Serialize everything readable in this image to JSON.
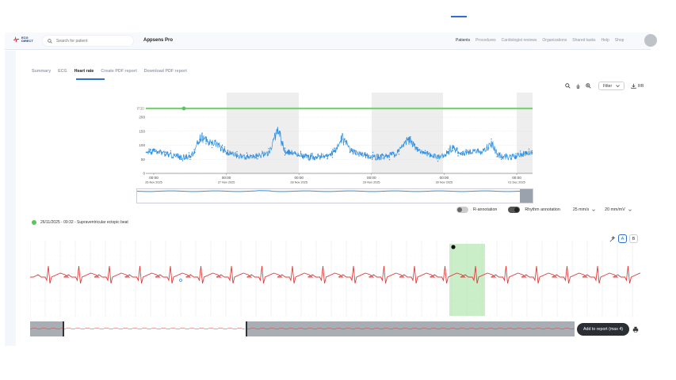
{
  "logo": {
    "text": "ECG DIRECT"
  },
  "search": {
    "placeholder": "Search for patient"
  },
  "app_title": "Appsens Pro",
  "topnav": [
    "Patients",
    "Procedures",
    "Cardiologist reviews",
    "Organizations",
    "Shared tasks",
    "Help",
    "Shop"
  ],
  "tabs": [
    "Summary",
    "ECG",
    "Heart rate",
    "Create PDF report",
    "Download PDF report"
  ],
  "active_tab": "Heart rate",
  "toolbar": {
    "filter_label": "Filter",
    "rr_label": "RR"
  },
  "hr_chart": {
    "series_top_label": "P30",
    "y_ticks": [
      "200",
      "150",
      "100",
      "50",
      "0"
    ],
    "x_times": [
      "00:00",
      "00:00",
      "00:00",
      "00:00",
      "00:00",
      "00:00"
    ],
    "x_dates": [
      "26 Nov 2025",
      "27 Nov 2025",
      "28 Nov 2025",
      "29 Nov 2025",
      "30 Nov 2025",
      "01 Dec 2025"
    ],
    "line_color": "#2f8fe0",
    "top_line_color": "#7dd07a"
  },
  "annotations": {
    "r_label": "R-annotation",
    "rhythm_label": "Rhythm annotation",
    "speed": "25 mm/s",
    "gain": "20 mm/mV"
  },
  "event": {
    "text": "26/11/2025 - 09:32 - Supraventricular ectopic beat",
    "color": "#5cc45e"
  },
  "ecg": {
    "lead_a": "A",
    "lead_b": "B",
    "line_color": "#e23c3c",
    "highlight_color": "#9fe09a"
  },
  "actions": {
    "add_report": "Add to report (max 4)"
  }
}
